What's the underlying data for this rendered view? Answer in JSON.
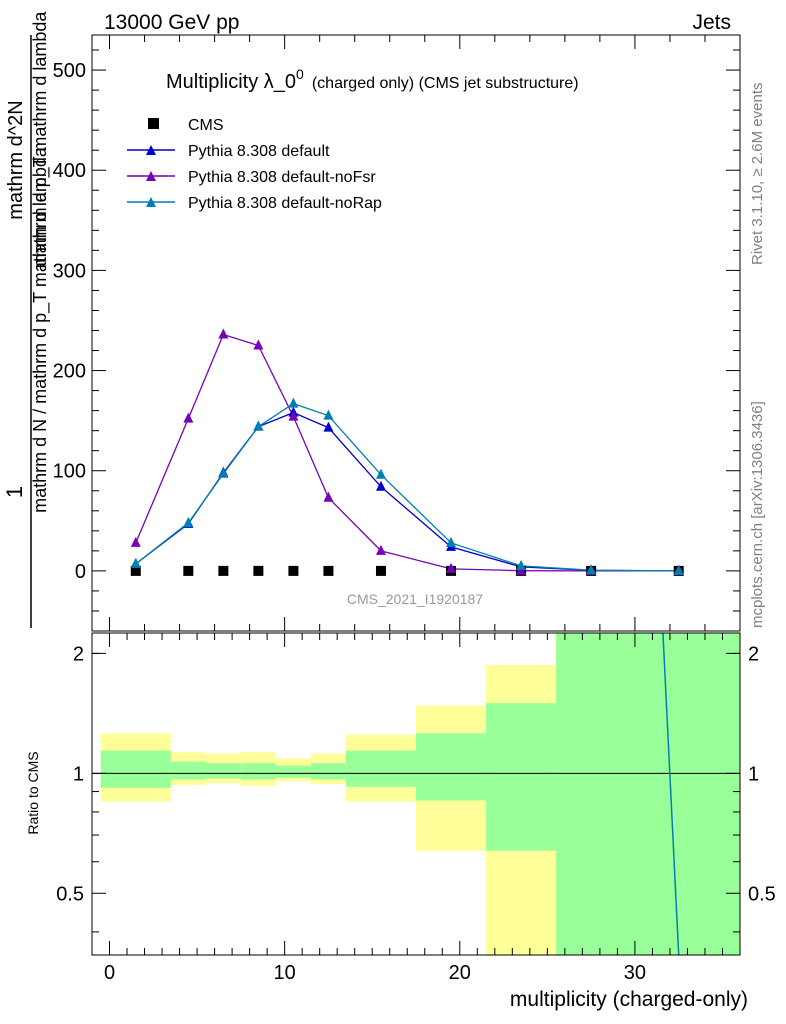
{
  "header": {
    "left": "13000 GeV pp",
    "right": "Jets"
  },
  "side": {
    "rivet": "Rivet 3.1.10, ≥ 2.6M events",
    "mcplots": "mcplots.cern.ch [arXiv:1306.3436]"
  },
  "colors": {
    "cms": "#000000",
    "default": "#0000cc",
    "noFsr": "#7700bb",
    "noRap": "#0080b0",
    "band_inner": "#99ff99",
    "band_outer": "#ffff99",
    "watermark": "#999999"
  },
  "chart_data": [
    {
      "type": "line",
      "title": "Multiplicity λ_0^0 (charged only) (CMS jet substructure)",
      "title_main": "Multiplicity λ_0",
      "title_sup": "0",
      "title_rest": "(charged only) (CMS jet substructure)",
      "ylabel_line1": "1",
      "ylabel_line2": "mathrm d N / mathrm d p_T mathrm d lambda",
      "ylabel_num": "mathrm d^2N",
      "ylabel_den": "mathrm d p_T mathrm d lambda",
      "watermark": "CMS_2021_I1920187",
      "xlim": [
        -1,
        36
      ],
      "ylim": [
        -60,
        535
      ],
      "yticks": [
        0,
        100,
        200,
        300,
        400,
        500
      ],
      "yticklabels": [
        "0",
        "100",
        "200",
        "300",
        "400",
        "500"
      ],
      "legend_position": "top-left",
      "x": [
        1.5,
        4.5,
        6.5,
        8.5,
        10.5,
        12.5,
        15.5,
        19.5,
        23.5,
        27.5,
        32.5
      ],
      "series": [
        {
          "name": "CMS",
          "marker": "square",
          "values": [
            0,
            0,
            0,
            0,
            0,
            0,
            0,
            0,
            0,
            0,
            0
          ]
        },
        {
          "name": "Pythia 8.308 default",
          "marker": "triangle",
          "values": [
            7,
            47,
            98,
            144,
            158,
            143,
            84,
            24,
            4,
            0.5,
            0
          ]
        },
        {
          "name": "Pythia 8.308 default-noFsr",
          "marker": "triangle",
          "values": [
            28,
            152,
            236,
            225,
            154,
            73,
            20,
            2,
            0.2,
            0,
            0
          ]
        },
        {
          "name": "Pythia 8.308 default-noRap",
          "marker": "triangle",
          "values": [
            7,
            48,
            97,
            144,
            167,
            155,
            96,
            28,
            5,
            0.7,
            0
          ]
        }
      ]
    },
    {
      "type": "area",
      "ylabel": "Ratio to CMS",
      "xlabel": "multiplicity (charged-only)",
      "xlim": [
        -1,
        36
      ],
      "ylim": [
        0.35,
        2.25
      ],
      "xticks": [
        0,
        10,
        20,
        30
      ],
      "xticklabels": [
        "0",
        "10",
        "20",
        "30"
      ],
      "yticks": [
        0.5,
        1,
        2
      ],
      "yticklabels": [
        "0.5",
        "1",
        "2"
      ],
      "bands": [
        {
          "x0": -0.5,
          "x1": 3.5,
          "inner": [
            0.92,
            1.14
          ],
          "outer": [
            0.85,
            1.26
          ]
        },
        {
          "x0": 3.5,
          "x1": 5.5,
          "inner": [
            0.965,
            1.07
          ],
          "outer": [
            0.935,
            1.13
          ]
        },
        {
          "x0": 5.5,
          "x1": 7.5,
          "inner": [
            0.97,
            1.06
          ],
          "outer": [
            0.945,
            1.12
          ]
        },
        {
          "x0": 7.5,
          "x1": 9.5,
          "inner": [
            0.965,
            1.06
          ],
          "outer": [
            0.93,
            1.13
          ]
        },
        {
          "x0": 9.5,
          "x1": 11.5,
          "inner": [
            0.975,
            1.045
          ],
          "outer": [
            0.955,
            1.09
          ]
        },
        {
          "x0": 11.5,
          "x1": 13.5,
          "inner": [
            0.965,
            1.06
          ],
          "outer": [
            0.94,
            1.12
          ]
        },
        {
          "x0": 13.5,
          "x1": 17.5,
          "inner": [
            0.925,
            1.14
          ],
          "outer": [
            0.85,
            1.25
          ]
        },
        {
          "x0": 17.5,
          "x1": 21.5,
          "inner": [
            0.855,
            1.26
          ],
          "outer": [
            0.64,
            1.48
          ]
        },
        {
          "x0": 21.5,
          "x1": 25.5,
          "inner": [
            0.64,
            1.5
          ],
          "outer": [
            0.35,
            1.87
          ]
        },
        {
          "x0": 25.5,
          "x1": 36,
          "inner": [
            0.35,
            2.25
          ],
          "outer": [
            0.35,
            2.25
          ]
        }
      ],
      "ratio_series": [
        {
          "name": "Pythia 8.308 default-noRap",
          "points": [
            [
              31.6,
              2.25
            ],
            [
              32.5,
              0.35
            ]
          ]
        }
      ]
    }
  ]
}
